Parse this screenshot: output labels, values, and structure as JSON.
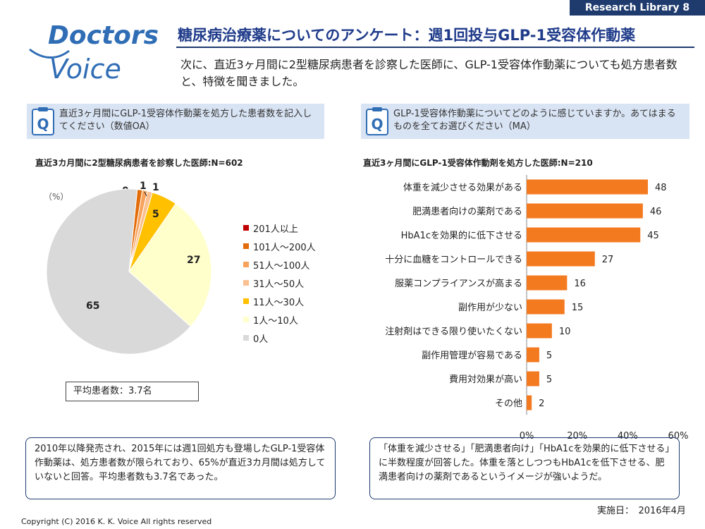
{
  "header": {
    "tag": "Research Library  8",
    "title": "糖尿病治療薬についてのアンケート：週1回投与GLP-1受容体作動薬"
  },
  "logo": {
    "line1": "Doctors",
    "line2": "Voice"
  },
  "intro": "次に、直近3ヶ月間に2型糖尿病患者を診察した医師に、GLP-1受容体作動薬についても処方患者数と、特徴を聞きました。",
  "left": {
    "question": "直近3ヶ月間にGLP-1受容体作動薬を処方した患者数を記入してください（数値OA）",
    "subtitle": "直近3カ月間に2型糖尿病患者を診察した医師:N=602",
    "unit": "（%）",
    "average": "平均患者数：3.7名",
    "note": "2010年以降発売され、2015年には週1回処方も登場したGLP-1受容体作動薬は、処方患者数が限られており、65%が直近3カ月間は処方していないと回答。平均患者数も3.7名であった。"
  },
  "right": {
    "question": "GLP-1受容体作動薬についてどのように感じていますか。あてはまるものを全てお選びください（MA）",
    "subtitle": "直近3ヶ月間にGLP-1受容体作動剤を処方した医師:N=210",
    "note": "「体重を減少させる」「肥満患者向け」「HbA1cを効果的に低下させる」に半数程度が回答した。体重を落としつつもHbA1cを低下させる、肥満患者向けの薬剤であるというイメージが強いようだ。"
  },
  "footer": {
    "date": "実施日：　2016年4月",
    "copyright": "Copyright (C) 2016 K. K. Voice  All rights reserved"
  },
  "colors": {
    "navy": "#1f3b6e",
    "bar": "#f47a20"
  },
  "chart_data": [
    {
      "type": "pie",
      "categories": [
        "201人以上",
        "101人～200人",
        "51人～100人",
        "31人～50人",
        "11人～30人",
        "1人～10人",
        "0人"
      ],
      "values": [
        0,
        1,
        1,
        1,
        5,
        27,
        65
      ],
      "labels": [
        "0",
        "1",
        "1",
        "",
        "5",
        "27",
        "65"
      ],
      "colors": [
        "#c00000",
        "#e36c0a",
        "#f7a35c",
        "#fac090",
        "#ffc000",
        "#ffffcc",
        "#d9d9d9"
      ],
      "legend": "right"
    },
    {
      "type": "bar",
      "orientation": "horizontal",
      "categories": [
        "体重を減少させる効果がある",
        "肥満患者向けの薬剤である",
        "HbA1cを効果的に低下させる",
        "十分に血糖をコントロールできる",
        "服薬コンプライアンスが高まる",
        "副作用が少ない",
        "注射剤はできる限り使いたくない",
        "副作用管理が容易である",
        "費用対効果が高い",
        "その他"
      ],
      "values": [
        48,
        46,
        45,
        27,
        16,
        15,
        10,
        5,
        5,
        2
      ],
      "xlim": [
        0,
        60
      ],
      "xticks": [
        "0%",
        "20%",
        "40%",
        "60%"
      ],
      "color": "#f47a20"
    }
  ]
}
